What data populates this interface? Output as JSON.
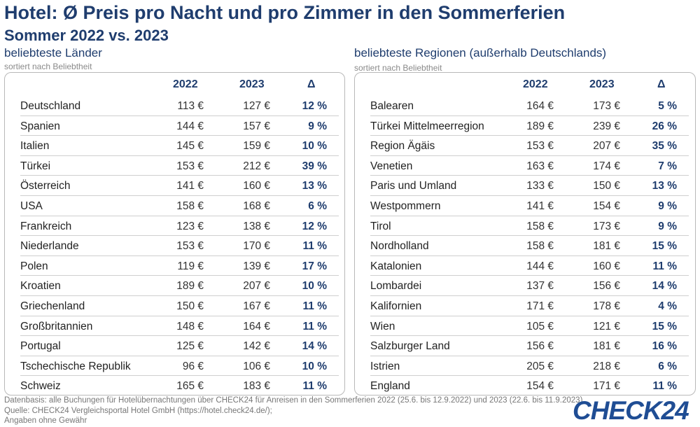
{
  "header": {
    "title": "Hotel: Ø Preis pro Nacht und pro Zimmer in den Sommerferien",
    "subtitle": "Sommer 2022 vs. 2023"
  },
  "columns": {
    "y2022": "2022",
    "y2023": "2023",
    "delta": "Δ"
  },
  "left": {
    "title": "beliebteste Länder",
    "sub": "sortiert nach Beliebtheit",
    "rows": [
      [
        "Deutschland",
        "113 €",
        "127 €",
        "12 %"
      ],
      [
        "Spanien",
        "144 €",
        "157 €",
        "9 %"
      ],
      [
        "Italien",
        "145 €",
        "159 €",
        "10 %"
      ],
      [
        "Türkei",
        "153 €",
        "212 €",
        "39 %"
      ],
      [
        "Österreich",
        "141 €",
        "160 €",
        "13 %"
      ],
      [
        "USA",
        "158 €",
        "168 €",
        "6 %"
      ],
      [
        "Frankreich",
        "123 €",
        "138 €",
        "12 %"
      ],
      [
        "Niederlande",
        "153 €",
        "170 €",
        "11 %"
      ],
      [
        "Polen",
        "119 €",
        "139 €",
        "17 %"
      ],
      [
        "Kroatien",
        "189 €",
        "207 €",
        "10 %"
      ],
      [
        "Griechenland",
        "150 €",
        "167 €",
        "11 %"
      ],
      [
        "Großbritannien",
        "148 €",
        "164 €",
        "11 %"
      ],
      [
        "Portugal",
        "125 €",
        "142 €",
        "14 %"
      ],
      [
        "Tschechische Republik",
        "96 €",
        "106 €",
        "10 %"
      ],
      [
        "Schweiz",
        "165 €",
        "183 €",
        "11 %"
      ]
    ]
  },
  "right": {
    "title": "beliebteste Regionen (außerhalb Deutschlands)",
    "sub": "sortiert nach Beliebtheit",
    "rows": [
      [
        "Balearen",
        "164 €",
        "173 €",
        "5 %"
      ],
      [
        "Türkei Mittelmeerregion",
        "189 €",
        "239 €",
        "26 %"
      ],
      [
        "Region Ägäis",
        "153 €",
        "207 €",
        "35 %"
      ],
      [
        "Venetien",
        "163 €",
        "174 €",
        "7 %"
      ],
      [
        "Paris und Umland",
        "133 €",
        "150 €",
        "13 %"
      ],
      [
        "Westpommern",
        "141 €",
        "154 €",
        "9 %"
      ],
      [
        "Tirol",
        "158 €",
        "173 €",
        "9 %"
      ],
      [
        "Nordholland",
        "158 €",
        "181 €",
        "15 %"
      ],
      [
        "Katalonien",
        "144 €",
        "160 €",
        "11 %"
      ],
      [
        "Lombardei",
        "137 €",
        "156 €",
        "14 %"
      ],
      [
        "Kalifornien",
        "171 €",
        "178 €",
        "4 %"
      ],
      [
        "Wien",
        "105 €",
        "121 €",
        "15 %"
      ],
      [
        "Salzburger Land",
        "156 €",
        "181 €",
        "16 %"
      ],
      [
        "Istrien",
        "205 €",
        "218 €",
        "6 %"
      ],
      [
        "England",
        "154 €",
        "171 €",
        "11 %"
      ]
    ]
  },
  "footer": {
    "line1": "Datenbasis: alle Buchungen für Hotelübernachtungen über CHECK24 für Anreisen in den Sommerferien 2022 (25.6. bis 12.9.2022) und 2023 (22.6. bis 11.9.2023)",
    "line2": "Quelle: CHECK24 Vergleichsportal Hotel GmbH (https://hotel.check24.de/);",
    "line3": "Angaben ohne Gewähr"
  },
  "brand": {
    "logo": "CHECK24",
    "color": "#1f4d94",
    "accent": "#1f3d6e"
  }
}
